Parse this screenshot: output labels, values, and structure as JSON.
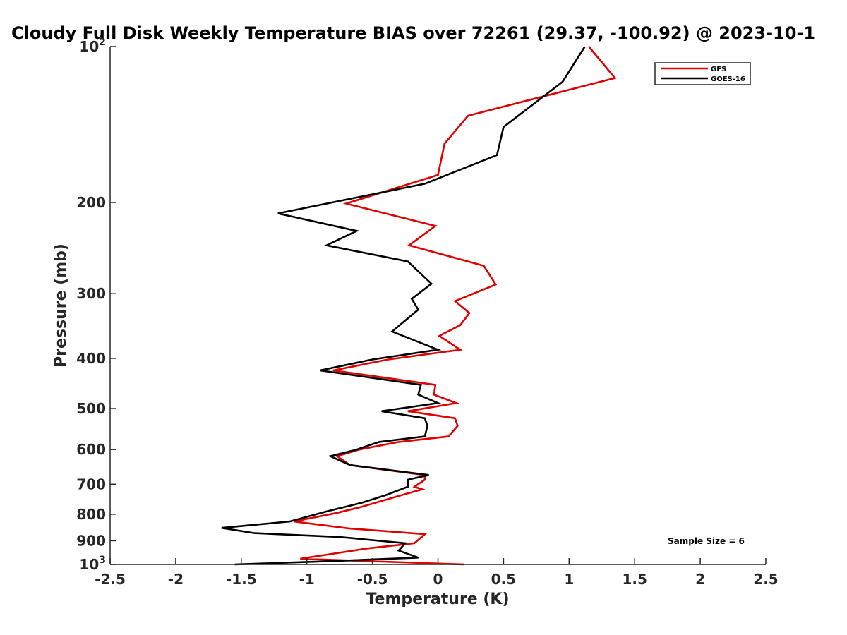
{
  "chart_data": {
    "type": "line",
    "title": "Cloudy Full Disk Weekly Temperature BIAS over 72261 (29.37, -100.92) @ 2023-10-1",
    "xlabel": "Temperature (K)",
    "ylabel": "Pressure (mb)",
    "xlim": [
      -2.5,
      2.5
    ],
    "ylim": [
      100,
      1000
    ],
    "y_scale": "log",
    "y_reversed": true,
    "grid": false,
    "legend_position": "top-right",
    "x_ticks": [
      "-2.5",
      "-2",
      "-1.5",
      "-1",
      "-0.5",
      "0",
      "0.5",
      "1",
      "1.5",
      "2",
      "2.5"
    ],
    "y_ticks": [
      {
        "value": 100,
        "label": "10",
        "sup": "2"
      },
      {
        "value": 200,
        "label": "200"
      },
      {
        "value": 300,
        "label": "300"
      },
      {
        "value": 400,
        "label": "400"
      },
      {
        "value": 500,
        "label": "500"
      },
      {
        "value": 600,
        "label": "600"
      },
      {
        "value": 700,
        "label": "700"
      },
      {
        "value": 800,
        "label": "800"
      },
      {
        "value": 900,
        "label": "900"
      },
      {
        "value": 1000,
        "label": "10",
        "sup": "3"
      }
    ],
    "annotation": "Sample Size = 6",
    "series": [
      {
        "name": "GFS",
        "color": "#e00000",
        "points": [
          [
            1.15,
            100
          ],
          [
            1.35,
            115
          ],
          [
            0.23,
            136
          ],
          [
            0.05,
            154
          ],
          [
            0.0,
            177
          ],
          [
            -0.7,
            201
          ],
          [
            -0.02,
            222
          ],
          [
            -0.22,
            242
          ],
          [
            0.35,
            265
          ],
          [
            0.44,
            288
          ],
          [
            0.13,
            310
          ],
          [
            0.24,
            327
          ],
          [
            0.17,
            345
          ],
          [
            0.01,
            362
          ],
          [
            0.17,
            385
          ],
          [
            -0.38,
            402
          ],
          [
            -0.8,
            422
          ],
          [
            -0.02,
            450
          ],
          [
            -0.03,
            470
          ],
          [
            0.14,
            488
          ],
          [
            -0.23,
            506
          ],
          [
            0.13,
            522
          ],
          [
            0.15,
            540
          ],
          [
            0.08,
            566
          ],
          [
            -0.3,
            580
          ],
          [
            -0.6,
            600
          ],
          [
            -0.77,
            618
          ],
          [
            -0.67,
            643
          ],
          [
            -0.1,
            672
          ],
          [
            -0.1,
            686
          ],
          [
            -0.18,
            708
          ],
          [
            -0.12,
            716
          ],
          [
            -0.28,
            735
          ],
          [
            -0.6,
            776
          ],
          [
            -0.78,
            796
          ],
          [
            -1.1,
            826
          ],
          [
            -0.68,
            852
          ],
          [
            -0.1,
            874
          ],
          [
            -0.18,
            910
          ],
          [
            -0.55,
            932
          ],
          [
            -1.05,
            975
          ],
          [
            0.2,
            1000
          ]
        ]
      },
      {
        "name": "GOES-16",
        "color": "#000000",
        "points": [
          [
            1.12,
            100
          ],
          [
            0.95,
            117
          ],
          [
            0.5,
            143
          ],
          [
            0.45,
            162
          ],
          [
            -0.1,
            184
          ],
          [
            -1.22,
            210
          ],
          [
            -0.62,
            227
          ],
          [
            -0.85,
            242
          ],
          [
            -0.23,
            260
          ],
          [
            -0.05,
            287
          ],
          [
            -0.2,
            307
          ],
          [
            -0.15,
            322
          ],
          [
            -0.35,
            355
          ],
          [
            0.0,
            385
          ],
          [
            -0.5,
            402
          ],
          [
            -0.9,
            422
          ],
          [
            -0.13,
            450
          ],
          [
            -0.15,
            470
          ],
          [
            0.0,
            488
          ],
          [
            -0.43,
            506
          ],
          [
            -0.1,
            522
          ],
          [
            -0.08,
            540
          ],
          [
            -0.1,
            566
          ],
          [
            -0.45,
            580
          ],
          [
            -0.62,
            600
          ],
          [
            -0.82,
            618
          ],
          [
            -0.67,
            643
          ],
          [
            -0.07,
            672
          ],
          [
            -0.23,
            686
          ],
          [
            -0.23,
            708
          ],
          [
            -0.4,
            735
          ],
          [
            -0.58,
            760
          ],
          [
            -0.85,
            790
          ],
          [
            -1.13,
            826
          ],
          [
            -1.65,
            850
          ],
          [
            -1.4,
            870
          ],
          [
            -0.75,
            885
          ],
          [
            -0.25,
            910
          ],
          [
            -0.3,
            940
          ],
          [
            -0.15,
            970
          ],
          [
            -0.8,
            985
          ],
          [
            -1.55,
            1000
          ]
        ]
      }
    ]
  }
}
